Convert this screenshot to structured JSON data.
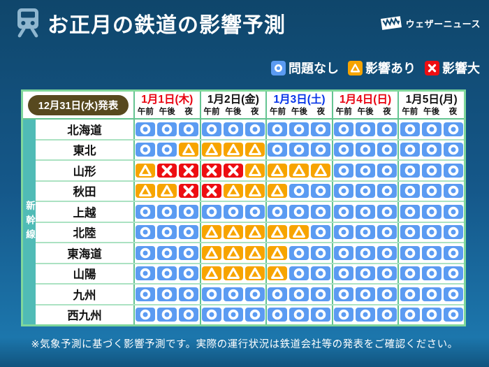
{
  "header": {
    "title": "お正月の鉄道の影響予測",
    "brand": "ウェザーニュース"
  },
  "legend": {
    "items": [
      {
        "status": "ok",
        "label": "問題なし"
      },
      {
        "status": "warn",
        "label": "影響あり"
      },
      {
        "status": "bad",
        "label": "影響大"
      }
    ]
  },
  "table": {
    "announce": "12月31日(水)発表",
    "day_colors": [
      "#E8000F",
      "#111111",
      "#0433E8",
      "#E8000F",
      "#111111"
    ],
    "status_colors": {
      "ok": "#5B9BF2",
      "warn": "#F7A400",
      "bad": "#ED0E12"
    },
    "symbol_status": {
      "○": "ok",
      "△": "warn",
      "×": "bad"
    }
  },
  "footer": {
    "note": "※気象予測に基づく影響予測です。実際の運行状況は鉄道会社等の発表をご確認ください。"
  },
  "chart_data": {
    "type": "table",
    "title": "お正月の鉄道の影響予測",
    "announced": "12月31日(水)発表",
    "row_group": "新幹線",
    "legend": {
      "○": "問題なし",
      "△": "影響あり",
      "×": "影響大"
    },
    "columns": [
      "1月1日(木)",
      "1月2日(金)",
      "1月3日(土)",
      "1月4日(日)",
      "1月5日(月)"
    ],
    "sub_columns": [
      "午前",
      "午後",
      "夜"
    ],
    "rows": [
      {
        "line": "北海道",
        "values": [
          "○○○",
          "○○○",
          "○○○",
          "○○○",
          "○○○"
        ]
      },
      {
        "line": "東北",
        "values": [
          "○○△",
          "△△△",
          "○○○",
          "○○○",
          "○○○"
        ]
      },
      {
        "line": "山形",
        "values": [
          "△××",
          "××△",
          "△△△",
          "○○○",
          "○○○"
        ]
      },
      {
        "line": "秋田",
        "values": [
          "△△×",
          "×△△",
          "△○○",
          "○○○",
          "○○○"
        ]
      },
      {
        "line": "上越",
        "values": [
          "○○○",
          "○○○",
          "○○○",
          "○○○",
          "○○○"
        ]
      },
      {
        "line": "北陸",
        "values": [
          "○○○",
          "△△△",
          "△△○",
          "○○○",
          "○○○"
        ]
      },
      {
        "line": "東海道",
        "values": [
          "○○○",
          "△△△",
          "△○○",
          "○○○",
          "○○○"
        ]
      },
      {
        "line": "山陽",
        "values": [
          "○○○",
          "△△△",
          "△○○",
          "○○○",
          "○○○"
        ]
      },
      {
        "line": "九州",
        "values": [
          "○○○",
          "○○○",
          "○○○",
          "○○○",
          "○○○"
        ]
      },
      {
        "line": "西九州",
        "values": [
          "○○○",
          "○○○",
          "○○○",
          "○○○",
          "○○○"
        ]
      }
    ]
  }
}
